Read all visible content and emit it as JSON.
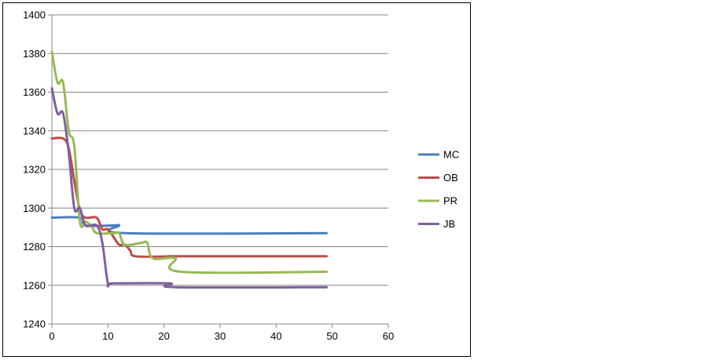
{
  "chart_data": {
    "type": "line",
    "title": "",
    "xlabel": "",
    "ylabel": "",
    "xlim": [
      0,
      60
    ],
    "ylim": [
      1240,
      1400
    ],
    "xticks": [
      "0",
      "10",
      "20",
      "30",
      "40",
      "50",
      "60"
    ],
    "yticks": [
      "1240",
      "1260",
      "1280",
      "1300",
      "1320",
      "1340",
      "1360",
      "1380",
      "1400"
    ],
    "grid": true,
    "legend_position": "right",
    "series": [
      {
        "name": "MC",
        "color": "#4a7ebb",
        "points": [
          [
            0,
            1295
          ],
          [
            5,
            1295
          ],
          [
            6,
            1291
          ],
          [
            11,
            1291
          ],
          [
            12,
            1291
          ],
          [
            13,
            1287
          ],
          [
            49,
            1287
          ]
        ]
      },
      {
        "name": "OB",
        "color": "#be4b48",
        "points": [
          [
            0,
            1336
          ],
          [
            2,
            1336
          ],
          [
            3,
            1331
          ],
          [
            4,
            1314
          ],
          [
            5,
            1299
          ],
          [
            6,
            1295
          ],
          [
            8,
            1295
          ],
          [
            9,
            1289
          ],
          [
            10,
            1289
          ],
          [
            11,
            1285
          ],
          [
            12,
            1281
          ],
          [
            13,
            1281
          ],
          [
            14,
            1278
          ],
          [
            15,
            1275
          ],
          [
            22,
            1275
          ],
          [
            23,
            1275
          ],
          [
            49,
            1275
          ]
        ]
      },
      {
        "name": "PR",
        "color": "#98b954",
        "points": [
          [
            0,
            1381
          ],
          [
            1,
            1365
          ],
          [
            2,
            1365
          ],
          [
            3,
            1340
          ],
          [
            4,
            1332
          ],
          [
            5,
            1293
          ],
          [
            6,
            1293
          ],
          [
            7,
            1291
          ],
          [
            8,
            1287
          ],
          [
            11,
            1287
          ],
          [
            12,
            1287
          ],
          [
            13,
            1281
          ],
          [
            16,
            1282
          ],
          [
            17,
            1282
          ],
          [
            18,
            1274
          ],
          [
            22,
            1274
          ],
          [
            23,
            1267
          ],
          [
            49,
            1267
          ]
        ]
      },
      {
        "name": "JB",
        "color": "#7d60a0",
        "points": [
          [
            0,
            1362
          ],
          [
            1,
            1349
          ],
          [
            2,
            1349
          ],
          [
            3,
            1329
          ],
          [
            4,
            1300
          ],
          [
            5,
            1300
          ],
          [
            6,
            1291
          ],
          [
            8,
            1291
          ],
          [
            9,
            1282
          ],
          [
            10,
            1261
          ],
          [
            11,
            1261
          ],
          [
            21,
            1261
          ],
          [
            22,
            1259
          ],
          [
            49,
            1259
          ]
        ]
      }
    ]
  }
}
